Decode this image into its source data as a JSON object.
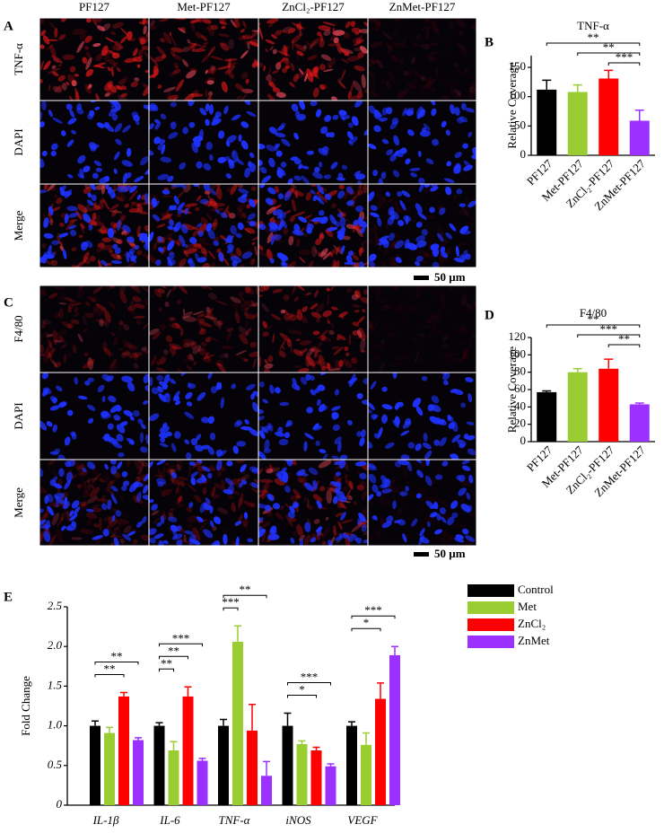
{
  "panel_labels": [
    "A",
    "B",
    "C",
    "D",
    "E"
  ],
  "image_panels": [
    {
      "columns": [
        "PF127",
        "Met-PF127",
        "ZnCl₂-PF127",
        "ZnMet-PF127"
      ],
      "rows": [
        "TNF-α",
        "DAPI",
        "Merge"
      ],
      "scale_bar": "50 µm"
    },
    {
      "rows": [
        "F4/80",
        "DAPI",
        "Merge"
      ],
      "scale_bar": "50 µm"
    }
  ],
  "chart_data": [
    {
      "type": "bar",
      "title": "TNF-α",
      "y_label": "Relative Coverage",
      "categories": [
        "PF127",
        "Met-PF127",
        "ZnCl₂-PF127",
        "ZnMet-PF127"
      ],
      "values": [
        112,
        108,
        131,
        59
      ],
      "errors": [
        16,
        12,
        14,
        18
      ],
      "colors": [
        "#000000",
        "#9acd32",
        "#ff0000",
        "#9b30ff"
      ],
      "ylim": [
        0,
        170
      ],
      "yticks": [
        0,
        50,
        100,
        150
      ],
      "significance": [
        {
          "between": [
            0,
            3
          ],
          "label": "**"
        },
        {
          "between": [
            1,
            3
          ],
          "label": "**"
        },
        {
          "between": [
            2,
            3
          ],
          "label": "***"
        }
      ]
    },
    {
      "type": "bar",
      "title": "F4/80",
      "y_label": "Relative Coverage",
      "categories": [
        "PF127",
        "Met-PF127",
        "ZnCl₂-PF127",
        "ZnMet-PF127"
      ],
      "values": [
        57,
        80,
        84,
        43
      ],
      "errors": [
        1.5,
        4,
        11,
        1.5
      ],
      "colors": [
        "#000000",
        "#9acd32",
        "#ff0000",
        "#9b30ff"
      ],
      "ylim": [
        0,
        120
      ],
      "yticks": [
        0,
        20,
        40,
        60,
        80,
        100,
        120
      ],
      "significance": [
        {
          "between": [
            0,
            3
          ],
          "label": "**"
        },
        {
          "between": [
            1,
            3
          ],
          "label": "***"
        },
        {
          "between": [
            2,
            3
          ],
          "label": "**"
        }
      ]
    },
    {
      "type": "grouped_bar",
      "y_label": "Fold Change",
      "categories": [
        "IL-1β",
        "IL-6",
        "TNF-α",
        "iNOS",
        "VEGF"
      ],
      "series": [
        {
          "name": "Control",
          "color": "#000000",
          "values": [
            1.0,
            1.0,
            1.0,
            1.0,
            1.0
          ],
          "errors": [
            0.06,
            0.04,
            0.08,
            0.16,
            0.05
          ]
        },
        {
          "name": "Met",
          "color": "#9acd32",
          "values": [
            0.91,
            0.69,
            2.06,
            0.77,
            0.76
          ],
          "errors": [
            0.07,
            0.11,
            0.2,
            0.04,
            0.15
          ]
        },
        {
          "name": "ZnCl₂",
          "color": "#ff0000",
          "values": [
            1.37,
            1.37,
            0.94,
            0.69,
            1.34
          ],
          "errors": [
            0.05,
            0.12,
            0.33,
            0.04,
            0.2
          ]
        },
        {
          "name": "ZnMet",
          "color": "#9b30ff",
          "values": [
            0.82,
            0.56,
            0.37,
            0.49,
            1.89
          ],
          "errors": [
            0.03,
            0.03,
            0.18,
            0.03,
            0.11
          ]
        }
      ],
      "ylim": [
        0,
        2.5
      ],
      "yticks": [
        0,
        0.5,
        {
          "value": 1,
          "label": "1.0"
        },
        1.5,
        {
          "value": 2,
          "label": "2.0"
        },
        2.5
      ],
      "significance": [
        {
          "category": 0,
          "between": [
            0,
            2
          ],
          "label": "**"
        },
        {
          "category": 0,
          "between": [
            0,
            3
          ],
          "label": "**"
        },
        {
          "category": 1,
          "between": [
            0,
            1
          ],
          "label": "**"
        },
        {
          "category": 1,
          "between": [
            0,
            2
          ],
          "label": "**"
        },
        {
          "category": 1,
          "between": [
            0,
            3
          ],
          "label": "***"
        },
        {
          "category": 2,
          "between": [
            0,
            1
          ],
          "label": "***"
        },
        {
          "category": 2,
          "between": [
            0,
            3
          ],
          "label": "**"
        },
        {
          "category": 3,
          "between": [
            0,
            2
          ],
          "label": "*"
        },
        {
          "category": 3,
          "between": [
            0,
            3
          ],
          "label": "***"
        },
        {
          "category": 4,
          "between": [
            0,
            2
          ],
          "label": "*"
        },
        {
          "category": 4,
          "between": [
            0,
            3
          ],
          "label": "***"
        }
      ]
    }
  ]
}
